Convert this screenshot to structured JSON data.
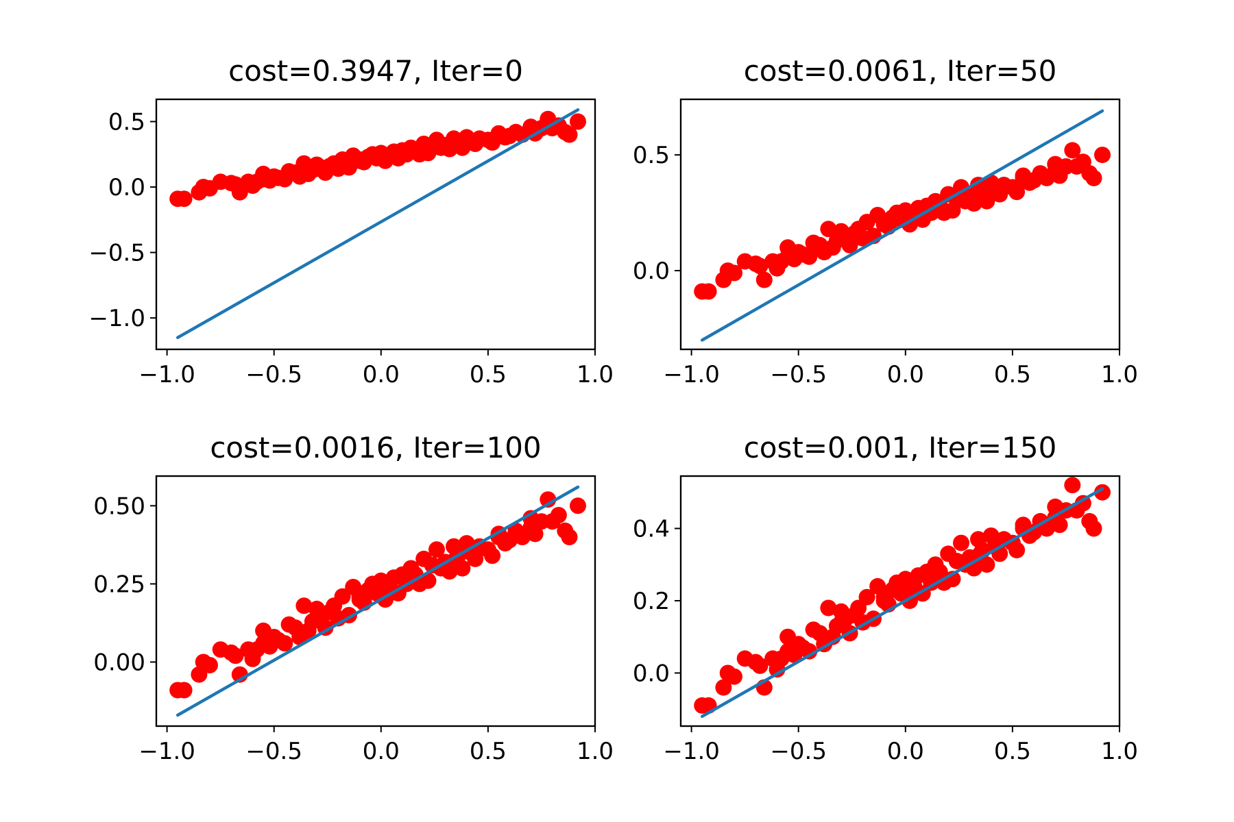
{
  "chart_data": [
    {
      "type": "scatter",
      "title": "cost=0.3947, Iter=0",
      "xlim": [
        -1.05,
        1.0
      ],
      "ylim": [
        -1.24,
        0.67
      ],
      "x_ticks": [
        -1.0,
        -0.5,
        0.0,
        0.5,
        1.0
      ],
      "x_tick_labels": [
        "−1.0",
        "−0.5",
        "0.0",
        "0.5",
        "1.0"
      ],
      "y_ticks": [
        0.5,
        0.0,
        -0.5,
        -1.0
      ],
      "y_tick_labels": [
        "0.5",
        "0.0",
        "−0.5",
        "−1.0"
      ],
      "grid": false,
      "fit_line": {
        "x": [
          -0.95,
          0.92
        ],
        "y": [
          -1.15,
          0.59
        ],
        "color": "#1f77b4"
      }
    },
    {
      "type": "scatter",
      "title": "cost=0.0061, Iter=50",
      "xlim": [
        -1.05,
        1.0
      ],
      "ylim": [
        -0.34,
        0.74
      ],
      "x_ticks": [
        -1.0,
        -0.5,
        0.0,
        0.5,
        1.0
      ],
      "x_tick_labels": [
        "−1.0",
        "−0.5",
        "0.0",
        "0.5",
        "1.0"
      ],
      "y_ticks": [
        0.5,
        0.0
      ],
      "y_tick_labels": [
        "0.5",
        "0.0"
      ],
      "grid": false,
      "fit_line": {
        "x": [
          -0.95,
          0.92
        ],
        "y": [
          -0.3,
          0.69
        ],
        "color": "#1f77b4"
      }
    },
    {
      "type": "scatter",
      "title": "cost=0.0016, Iter=100",
      "xlim": [
        -1.05,
        1.0
      ],
      "ylim": [
        -0.205,
        0.595
      ],
      "x_ticks": [
        -1.0,
        -0.5,
        0.0,
        0.5,
        1.0
      ],
      "x_tick_labels": [
        "−1.0",
        "−0.5",
        "0.0",
        "0.5",
        "1.0"
      ],
      "y_ticks": [
        0.5,
        0.25,
        0.0
      ],
      "y_tick_labels": [
        "0.50",
        "0.25",
        "0.00"
      ],
      "grid": false,
      "fit_line": {
        "x": [
          -0.95,
          0.92
        ],
        "y": [
          -0.17,
          0.56
        ],
        "color": "#1f77b4"
      }
    },
    {
      "type": "scatter",
      "title": "cost=0.001, Iter=150",
      "xlim": [
        -1.05,
        1.0
      ],
      "ylim": [
        -0.147,
        0.545
      ],
      "x_ticks": [
        -1.0,
        -0.5,
        0.0,
        0.5,
        1.0
      ],
      "x_tick_labels": [
        "−1.0",
        "−0.5",
        "0.0",
        "0.5",
        "1.0"
      ],
      "y_ticks": [
        0.4,
        0.2,
        0.0
      ],
      "y_tick_labels": [
        "0.4",
        "0.2",
        "0.0"
      ],
      "grid": false,
      "fit_line": {
        "x": [
          -0.95,
          0.92
        ],
        "y": [
          -0.12,
          0.51
        ],
        "color": "#1f77b4"
      }
    }
  ],
  "shared_scatter": {
    "color": "#ff0000",
    "x": [
      -0.95,
      -0.92,
      -0.85,
      -0.83,
      -0.8,
      -0.7,
      -0.68,
      -0.66,
      -0.62,
      -0.6,
      -0.58,
      -0.55,
      -0.52,
      -0.5,
      -0.48,
      -0.45,
      -0.43,
      -0.4,
      -0.38,
      -0.36,
      -0.34,
      -0.32,
      -0.3,
      -0.28,
      -0.26,
      -0.24,
      -0.22,
      -0.2,
      -0.18,
      -0.15,
      -0.13,
      -0.1,
      -0.08,
      -0.06,
      -0.04,
      -0.02,
      0.0,
      0.02,
      0.04,
      0.06,
      0.08,
      0.1,
      0.12,
      0.14,
      0.16,
      0.18,
      0.2,
      0.22,
      0.24,
      0.26,
      0.28,
      0.3,
      0.32,
      0.34,
      0.36,
      0.38,
      0.4,
      0.42,
      0.44,
      0.46,
      0.5,
      0.52,
      0.55,
      0.58,
      0.6,
      0.63,
      0.66,
      0.7,
      0.72,
      0.75,
      0.78,
      0.8,
      0.83,
      0.86,
      0.88,
      0.92,
      -0.75,
      -0.55,
      -0.3,
      -0.1,
      0.1,
      0.35,
      0.55,
      0.7
    ],
    "y": [
      -0.09,
      -0.09,
      -0.04,
      0.0,
      -0.01,
      0.03,
      0.02,
      -0.04,
      0.04,
      0.01,
      0.04,
      0.06,
      0.05,
      0.08,
      0.07,
      0.06,
      0.12,
      0.11,
      0.08,
      0.18,
      0.1,
      0.13,
      0.14,
      0.15,
      0.11,
      0.16,
      0.18,
      0.14,
      0.21,
      0.15,
      0.24,
      0.21,
      0.19,
      0.23,
      0.25,
      0.22,
      0.26,
      0.2,
      0.24,
      0.27,
      0.22,
      0.28,
      0.25,
      0.3,
      0.28,
      0.25,
      0.33,
      0.26,
      0.31,
      0.36,
      0.3,
      0.32,
      0.29,
      0.37,
      0.34,
      0.3,
      0.38,
      0.35,
      0.33,
      0.37,
      0.36,
      0.34,
      0.41,
      0.38,
      0.39,
      0.42,
      0.4,
      0.43,
      0.41,
      0.45,
      0.52,
      0.45,
      0.47,
      0.42,
      0.4,
      0.5,
      0.04,
      0.1,
      0.17,
      0.2,
      0.27,
      0.33,
      0.4,
      0.46
    ]
  }
}
